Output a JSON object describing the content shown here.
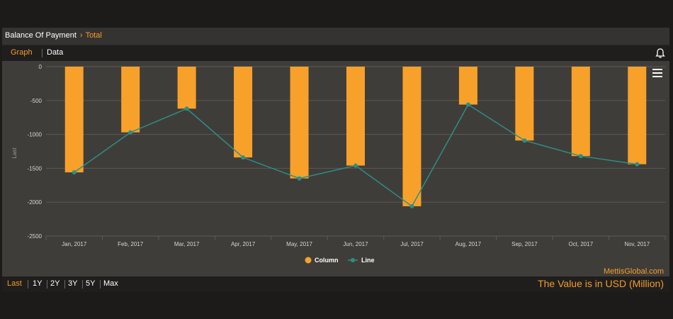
{
  "header": {
    "title": "Balance Of Payment",
    "breadcrumb_sep": "›",
    "breadcrumb": "Total"
  },
  "tabs": [
    {
      "label": "Graph",
      "active": true
    },
    {
      "label": "Data",
      "active": false
    }
  ],
  "icons": {
    "bell": "bell-icon",
    "menu": "hamburger-menu-icon"
  },
  "colors": {
    "column": "#f7a12a",
    "line": "#2d8e86",
    "accent": "#f39c2c"
  },
  "chart_data": {
    "type": "bar",
    "categories": [
      "Jan, 2017",
      "Feb, 2017",
      "Mar, 2017",
      "Apr, 2017",
      "May, 2017",
      "Jun, 2017",
      "Jul, 2017",
      "Aug, 2017",
      "Sep, 2017",
      "Oct, 2017",
      "Nov, 2017"
    ],
    "series": [
      {
        "name": "Column",
        "type": "bar",
        "values": [
          -1560,
          -970,
          -620,
          -1340,
          -1650,
          -1460,
          -2060,
          -560,
          -1090,
          -1320,
          -1440
        ]
      },
      {
        "name": "Line",
        "type": "line",
        "values": [
          -1560,
          -970,
          -620,
          -1340,
          -1650,
          -1460,
          -2060,
          -560,
          -1090,
          -1320,
          -1440
        ]
      }
    ],
    "ylabel": "Last",
    "ylim": [
      -2500,
      0
    ],
    "yticks": [
      0,
      -500,
      -1000,
      -1500,
      -2000,
      -2500
    ],
    "legend": "bottom-center",
    "grid": true
  },
  "watermark": "MettisGlobal.com",
  "ranges": [
    {
      "label": "Last",
      "active": true
    },
    {
      "label": "1Y",
      "active": false
    },
    {
      "label": "2Y",
      "active": false
    },
    {
      "label": "3Y",
      "active": false
    },
    {
      "label": "5Y",
      "active": false
    },
    {
      "label": "Max",
      "active": false
    }
  ],
  "note": "The Value is in USD (Million)"
}
